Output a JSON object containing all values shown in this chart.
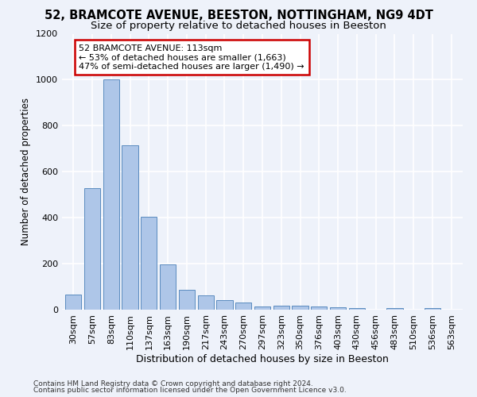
{
  "title1": "52, BRAMCOTE AVENUE, BEESTON, NOTTINGHAM, NG9 4DT",
  "title2": "Size of property relative to detached houses in Beeston",
  "xlabel": "Distribution of detached houses by size in Beeston",
  "ylabel": "Number of detached properties",
  "footer1": "Contains HM Land Registry data © Crown copyright and database right 2024.",
  "footer2": "Contains public sector information licensed under the Open Government Licence v3.0.",
  "categories": [
    "30sqm",
    "57sqm",
    "83sqm",
    "110sqm",
    "137sqm",
    "163sqm",
    "190sqm",
    "217sqm",
    "243sqm",
    "270sqm",
    "297sqm",
    "323sqm",
    "350sqm",
    "376sqm",
    "403sqm",
    "430sqm",
    "456sqm",
    "483sqm",
    "510sqm",
    "536sqm",
    "563sqm"
  ],
  "values": [
    65,
    530,
    1000,
    715,
    405,
    197,
    85,
    62,
    40,
    30,
    15,
    17,
    18,
    15,
    10,
    8,
    0,
    8,
    0,
    8,
    0
  ],
  "bar_color": "#aec6e8",
  "bar_edge_color": "#5a8bbf",
  "annotation_text": "52 BRAMCOTE AVENUE: 113sqm\n← 53% of detached houses are smaller (1,663)\n47% of semi-detached houses are larger (1,490) →",
  "annotation_box_color": "#ffffff",
  "annotation_edge_color": "#cc0000",
  "ylim": [
    0,
    1200
  ],
  "yticks": [
    0,
    200,
    400,
    600,
    800,
    1000,
    1200
  ],
  "background_color": "#eef2fa",
  "grid_color": "#ffffff",
  "title1_fontsize": 10.5,
  "title2_fontsize": 9.5,
  "xlabel_fontsize": 9,
  "ylabel_fontsize": 8.5,
  "tick_fontsize": 8,
  "annotation_fontsize": 8,
  "footer_fontsize": 6.5
}
